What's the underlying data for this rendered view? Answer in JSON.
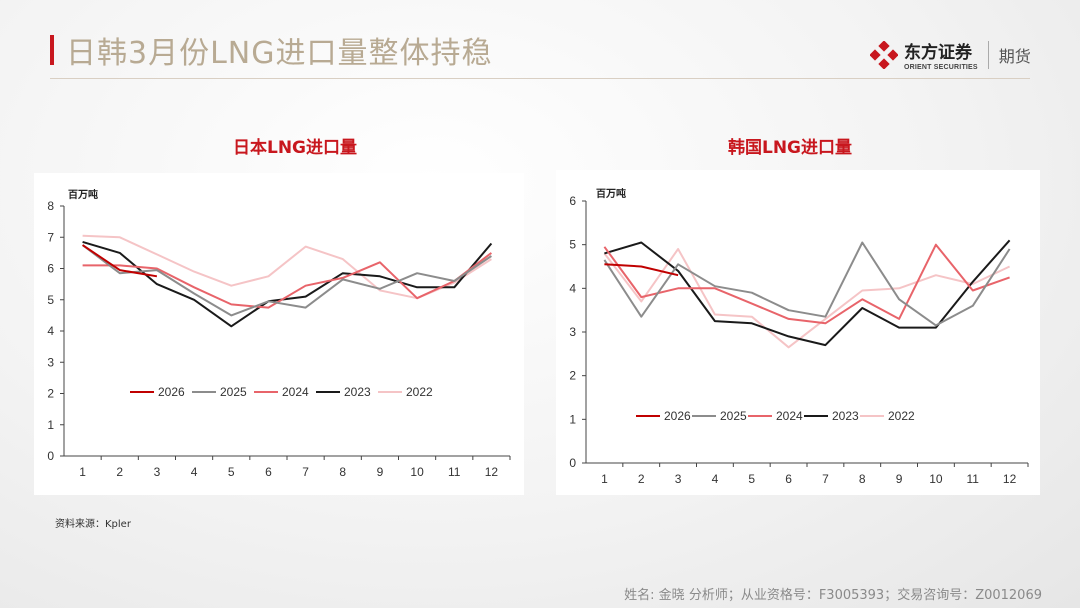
{
  "header": {
    "title": "日韩3月份LNG进口量整体持稳",
    "logo_cn": "东方证券",
    "logo_en": "ORIENT SECURITIES",
    "logo_sub": "期货"
  },
  "source": "资料来源：Kpler",
  "footer": "姓名: 金晓 分析师；从业资格号：F3005393；交易咨询号：Z0012069",
  "colors": {
    "2026": "#c00000",
    "2025": "#8c8c8c",
    "2024": "#e8646a",
    "2023": "#1a1a1a",
    "2022": "#f5c4c6"
  },
  "chart_data": [
    {
      "type": "line",
      "title": "日本LNG进口量",
      "ylabel": "百万吨",
      "xlabel": "",
      "x": [
        1,
        2,
        3,
        4,
        5,
        6,
        7,
        8,
        9,
        10,
        11,
        12
      ],
      "ylim": [
        0,
        8
      ],
      "yticks": [
        0,
        1,
        2,
        3,
        4,
        5,
        6,
        7,
        8
      ],
      "grid": false,
      "legend": "bottom",
      "series": [
        {
          "name": "2026",
          "values": [
            6.75,
            5.95,
            5.75,
            null,
            null,
            null,
            null,
            null,
            null,
            null,
            null,
            null
          ]
        },
        {
          "name": "2025",
          "values": [
            6.75,
            5.85,
            5.95,
            5.2,
            4.5,
            4.95,
            4.75,
            5.65,
            5.35,
            5.85,
            5.6,
            6.4
          ]
        },
        {
          "name": "2024",
          "values": [
            6.1,
            6.1,
            6.0,
            5.4,
            4.85,
            4.75,
            5.45,
            5.7,
            6.2,
            5.05,
            5.6,
            6.5
          ]
        },
        {
          "name": "2023",
          "values": [
            6.85,
            6.5,
            5.5,
            5.0,
            4.15,
            4.95,
            5.1,
            5.85,
            5.75,
            5.4,
            5.4,
            6.8
          ]
        },
        {
          "name": "2022",
          "values": [
            7.05,
            7.0,
            6.45,
            5.9,
            5.45,
            5.75,
            6.7,
            6.3,
            5.3,
            5.05,
            5.55,
            6.3
          ]
        }
      ]
    },
    {
      "type": "line",
      "title": "韩国LNG进口量",
      "ylabel": "百万吨",
      "xlabel": "",
      "x": [
        1,
        2,
        3,
        4,
        5,
        6,
        7,
        8,
        9,
        10,
        11,
        12
      ],
      "ylim": [
        0,
        6
      ],
      "yticks": [
        0,
        1,
        2,
        3,
        4,
        5,
        6
      ],
      "grid": false,
      "legend": "bottom",
      "series": [
        {
          "name": "2026",
          "values": [
            4.55,
            4.5,
            4.3,
            null,
            null,
            null,
            null,
            null,
            null,
            null,
            null,
            null
          ]
        },
        {
          "name": "2025",
          "values": [
            4.65,
            3.35,
            4.55,
            4.05,
            3.9,
            3.5,
            3.35,
            5.05,
            3.75,
            3.15,
            3.6,
            4.9
          ]
        },
        {
          "name": "2024",
          "values": [
            4.95,
            3.8,
            4.0,
            4.0,
            3.65,
            3.3,
            3.2,
            3.75,
            3.3,
            5.0,
            3.95,
            4.25
          ]
        },
        {
          "name": "2023",
          "values": [
            4.8,
            5.05,
            4.4,
            3.25,
            3.2,
            2.9,
            2.7,
            3.55,
            3.1,
            3.1,
            4.15,
            5.1
          ]
        },
        {
          "name": "2022",
          "values": [
            4.8,
            3.7,
            4.9,
            3.4,
            3.35,
            2.65,
            3.3,
            3.95,
            4.0,
            4.3,
            4.1,
            4.5
          ]
        }
      ]
    }
  ]
}
